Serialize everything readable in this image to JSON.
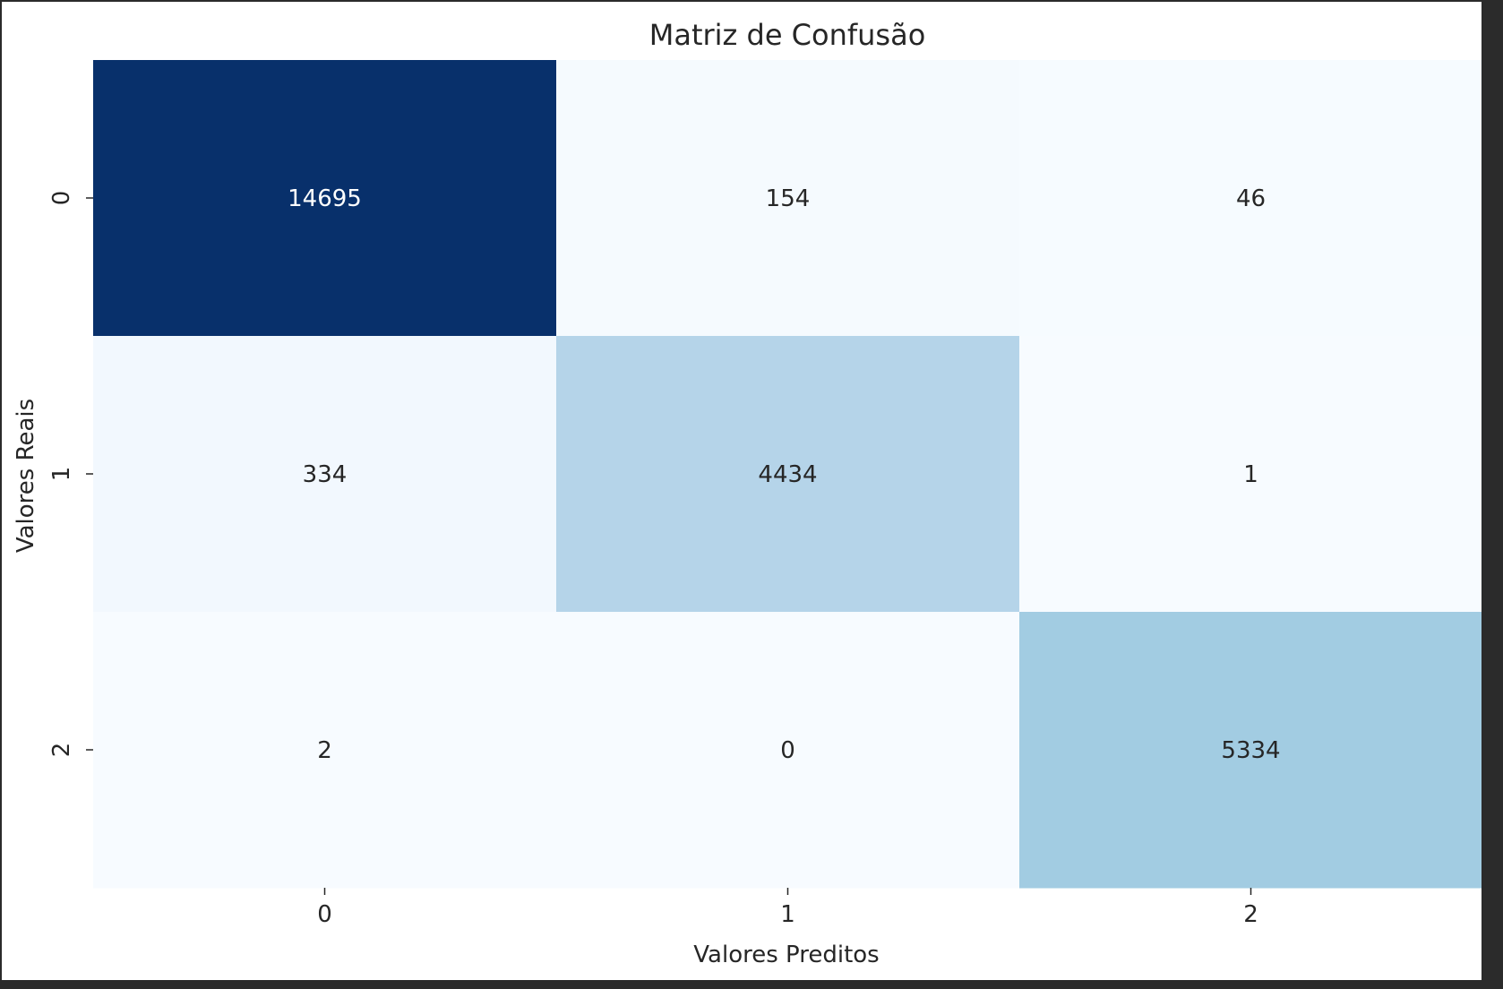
{
  "chart_data": {
    "type": "heatmap",
    "title": "Matriz de Confusão",
    "xlabel": "Valores Preditos",
    "ylabel": "Valores Reais",
    "x_categories": [
      "0",
      "1",
      "2"
    ],
    "y_categories": [
      "0",
      "1",
      "2"
    ],
    "values": [
      [
        14695,
        154,
        46
      ],
      [
        334,
        4434,
        1
      ],
      [
        2,
        0,
        5334
      ]
    ],
    "colormap": "Blues",
    "colorbar": false,
    "annotations": true,
    "grid": false,
    "colors": {
      "low": "#f7fbff",
      "high": "#08306b",
      "text_dark": "#262626",
      "text_light": "#ffffff"
    }
  }
}
